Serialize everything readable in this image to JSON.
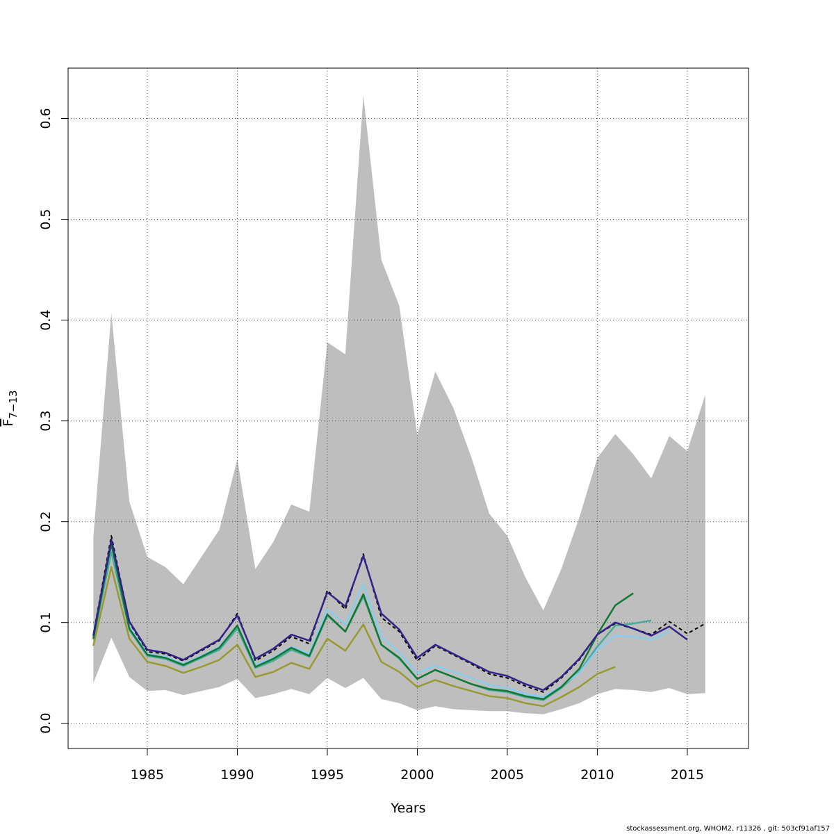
{
  "chart_data": {
    "type": "line",
    "xlabel": "Years",
    "ylabel_main": "F",
    "ylabel_sub": "7−13",
    "xlim": [
      1980.6,
      2018.4
    ],
    "ylim": [
      -0.025,
      0.65
    ],
    "x_ticks": [
      {
        "value": 1985,
        "label": "1985"
      },
      {
        "value": 1990,
        "label": "1990"
      },
      {
        "value": 1995,
        "label": "1995"
      },
      {
        "value": 2000,
        "label": "2000"
      },
      {
        "value": 2005,
        "label": "2005"
      },
      {
        "value": 2010,
        "label": "2010"
      },
      {
        "value": 2015,
        "label": "2015"
      }
    ],
    "y_ticks": [
      {
        "value": 0.0,
        "label": "0.0"
      },
      {
        "value": 0.1,
        "label": "0.1"
      },
      {
        "value": 0.2,
        "label": "0.2"
      },
      {
        "value": 0.3,
        "label": "0.3"
      },
      {
        "value": 0.4,
        "label": "0.4"
      },
      {
        "value": 0.5,
        "label": "0.5"
      },
      {
        "value": 0.6,
        "label": "0.6"
      }
    ],
    "grid": true,
    "band": {
      "color": "#bebebe",
      "x": [
        1982,
        1983,
        1984,
        1985,
        1986,
        1987,
        1988,
        1989,
        1990,
        1991,
        1992,
        1993,
        1994,
        1995,
        1996,
        1997,
        1998,
        1999,
        2000,
        2001,
        2002,
        2003,
        2004,
        2005,
        2006,
        2007,
        2008,
        2009,
        2010,
        2011,
        2012,
        2013,
        2014,
        2015,
        2016
      ],
      "upper": [
        0.185,
        0.407,
        0.22,
        0.165,
        0.155,
        0.138,
        0.165,
        0.192,
        0.262,
        0.153,
        0.18,
        0.217,
        0.21,
        0.378,
        0.366,
        0.623,
        0.46,
        0.414,
        0.286,
        0.349,
        0.313,
        0.264,
        0.208,
        0.186,
        0.145,
        0.112,
        0.153,
        0.204,
        0.263,
        0.287,
        0.267,
        0.243,
        0.285,
        0.27,
        0.326
      ],
      "lower": [
        0.04,
        0.085,
        0.046,
        0.032,
        0.033,
        0.028,
        0.032,
        0.036,
        0.044,
        0.025,
        0.029,
        0.034,
        0.029,
        0.045,
        0.035,
        0.045,
        0.024,
        0.02,
        0.013,
        0.017,
        0.014,
        0.013,
        0.012,
        0.012,
        0.01,
        0.009,
        0.014,
        0.02,
        0.029,
        0.034,
        0.033,
        0.031,
        0.035,
        0.029,
        0.03
      ]
    },
    "series": [
      {
        "color": "#000000",
        "dash": "5,4",
        "width": 2,
        "x": [
          1982,
          1983,
          1984,
          1985,
          1986,
          1987,
          1988,
          1989,
          1990,
          1991,
          1992,
          1993,
          1994,
          1995,
          1996,
          1997,
          1998,
          1999,
          2000,
          2001,
          2002,
          2003,
          2004,
          2005,
          2006,
          2007,
          2008,
          2009,
          2010,
          2011,
          2012,
          2013,
          2014,
          2015,
          2016
        ],
        "values": [
          0.088,
          0.186,
          0.1,
          0.071,
          0.069,
          0.062,
          0.072,
          0.082,
          0.109,
          0.062,
          0.072,
          0.086,
          0.079,
          0.132,
          0.113,
          0.168,
          0.105,
          0.091,
          0.062,
          0.077,
          0.068,
          0.059,
          0.049,
          0.045,
          0.037,
          0.031,
          0.045,
          0.063,
          0.088,
          0.099,
          0.094,
          0.088,
          0.101,
          0.089,
          0.099
        ]
      },
      {
        "color": "#999933",
        "dash": "",
        "width": 2.5,
        "x": [
          1982,
          1983,
          1984,
          1985,
          1986,
          1987,
          1988,
          1989,
          1990,
          1991,
          1992,
          1993,
          1994,
          1995,
          1996,
          1997,
          1998,
          1999,
          2000,
          2001,
          2002,
          2003,
          2004,
          2005,
          2006,
          2007,
          2008,
          2009,
          2010,
          2011
        ],
        "values": [
          0.077,
          0.155,
          0.084,
          0.061,
          0.057,
          0.05,
          0.056,
          0.063,
          0.078,
          0.046,
          0.051,
          0.06,
          0.054,
          0.084,
          0.072,
          0.098,
          0.061,
          0.051,
          0.036,
          0.043,
          0.037,
          0.032,
          0.027,
          0.025,
          0.02,
          0.017,
          0.026,
          0.036,
          0.049,
          0.056
        ]
      },
      {
        "color": "#44AA99",
        "dash": "",
        "width": 2.5,
        "x": [
          1982,
          1983,
          1984,
          1985,
          1986,
          1987,
          1988,
          1989,
          1990,
          1991,
          1992,
          1993,
          1994,
          1995,
          1996,
          1997,
          1998,
          1999,
          2000,
          2001,
          2002,
          2003,
          2004,
          2005,
          2006,
          2007,
          2008,
          2009,
          2010,
          2011,
          2012,
          2013
        ],
        "values": [
          0.083,
          0.17,
          0.093,
          0.067,
          0.064,
          0.057,
          0.065,
          0.073,
          0.094,
          0.055,
          0.062,
          0.073,
          0.066,
          0.107,
          0.091,
          0.126,
          0.078,
          0.064,
          0.044,
          0.053,
          0.046,
          0.039,
          0.033,
          0.031,
          0.026,
          0.023,
          0.035,
          0.051,
          0.076,
          0.097,
          0.099,
          0.102
        ]
      },
      {
        "color": "#88CCEE",
        "dash": "",
        "width": 2.5,
        "x": [
          1982,
          1983,
          1984,
          1985,
          1986,
          1987,
          1988,
          1989,
          1990,
          1991,
          1992,
          1993,
          1994,
          1995,
          1996,
          1997,
          1998,
          1999,
          2000,
          2001,
          2002,
          2003,
          2004,
          2005,
          2006,
          2007,
          2008,
          2009,
          2010,
          2011,
          2012,
          2013,
          2014
        ],
        "values": [
          0.086,
          0.176,
          0.096,
          0.069,
          0.066,
          0.059,
          0.067,
          0.076,
          0.097,
          0.058,
          0.065,
          0.076,
          0.069,
          0.113,
          0.098,
          0.138,
          0.086,
          0.07,
          0.05,
          0.057,
          0.051,
          0.045,
          0.038,
          0.035,
          0.029,
          0.026,
          0.037,
          0.05,
          0.073,
          0.087,
          0.086,
          0.083,
          0.091
        ]
      },
      {
        "color": "#117733",
        "dash": "",
        "width": 2.5,
        "x": [
          1982,
          1983,
          1984,
          1985,
          1986,
          1987,
          1988,
          1989,
          1990,
          1991,
          1992,
          1993,
          1994,
          1995,
          1996,
          1997,
          1998,
          1999,
          2000,
          2001,
          2002,
          2003,
          2004,
          2005,
          2006,
          2007,
          2008,
          2009,
          2010,
          2011,
          2012
        ],
        "values": [
          0.084,
          0.178,
          0.094,
          0.068,
          0.065,
          0.058,
          0.066,
          0.075,
          0.097,
          0.056,
          0.064,
          0.075,
          0.067,
          0.108,
          0.091,
          0.128,
          0.078,
          0.065,
          0.044,
          0.053,
          0.046,
          0.039,
          0.034,
          0.032,
          0.027,
          0.024,
          0.036,
          0.054,
          0.088,
          0.117,
          0.129
        ]
      },
      {
        "color": "#332288",
        "dash": "",
        "width": 2.5,
        "x": [
          1982,
          1983,
          1984,
          1985,
          1986,
          1987,
          1988,
          1989,
          1990,
          1991,
          1992,
          1993,
          1994,
          1995,
          1996,
          1997,
          1998,
          1999,
          2000,
          2001,
          2002,
          2003,
          2004,
          2005,
          2006,
          2007,
          2008,
          2009,
          2010,
          2011,
          2012,
          2013,
          2014,
          2015
        ],
        "values": [
          0.087,
          0.182,
          0.101,
          0.073,
          0.07,
          0.063,
          0.073,
          0.083,
          0.107,
          0.064,
          0.074,
          0.088,
          0.082,
          0.13,
          0.116,
          0.166,
          0.109,
          0.093,
          0.065,
          0.078,
          0.069,
          0.06,
          0.051,
          0.047,
          0.039,
          0.033,
          0.046,
          0.064,
          0.088,
          0.1,
          0.094,
          0.087,
          0.096,
          0.083
        ]
      }
    ]
  },
  "footer": {
    "credit": "stockassessment.org, WHOM2, r11326 , git: 503cf91af157"
  }
}
